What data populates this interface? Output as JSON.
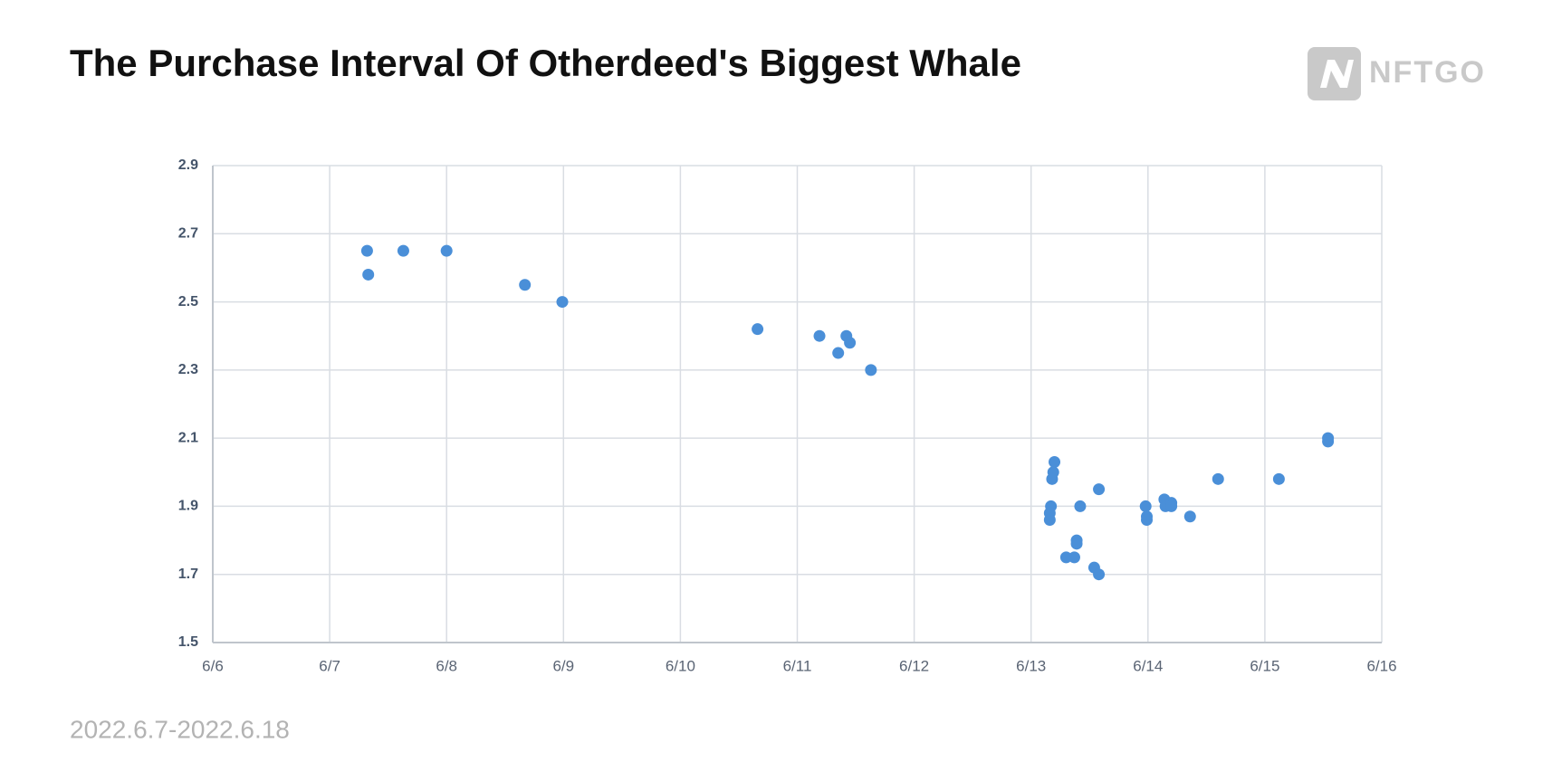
{
  "logo": "NFTGO",
  "chart_data": {
    "type": "scatter",
    "title": "The Purchase Interval Of Otherdeed's Biggest Whale",
    "subtitle": "2022.6.7-2022.6.18",
    "color": "#4a8fd8",
    "grid": true,
    "x": [
      7.32,
      7.33,
      7.63,
      8.0,
      8.67,
      8.99,
      10.66,
      11.19,
      11.42,
      11.45,
      11.35,
      11.63,
      13.2,
      13.19,
      13.18,
      13.17,
      13.16,
      13.16,
      13.42,
      13.58,
      13.39,
      13.39,
      13.3,
      13.37,
      13.54,
      13.58,
      13.98,
      13.99,
      13.99,
      14.14,
      14.15,
      14.2,
      14.2,
      14.36,
      14.6,
      15.12,
      15.54,
      15.54
    ],
    "values": [
      2.65,
      2.58,
      2.65,
      2.65,
      2.55,
      2.5,
      2.42,
      2.4,
      2.4,
      2.38,
      2.35,
      2.3,
      2.03,
      2.0,
      1.98,
      1.9,
      1.88,
      1.86,
      1.9,
      1.95,
      1.8,
      1.79,
      1.75,
      1.75,
      1.72,
      1.7,
      1.9,
      1.87,
      1.86,
      1.92,
      1.9,
      1.91,
      1.9,
      1.87,
      1.98,
      1.98,
      2.1,
      2.09
    ],
    "xlim": [
      6,
      16
    ],
    "xticks": [
      {
        "value": 6,
        "label": "6/6"
      },
      {
        "value": 7,
        "label": "6/7"
      },
      {
        "value": 8,
        "label": "6/8"
      },
      {
        "value": 9,
        "label": "6/9"
      },
      {
        "value": 10,
        "label": "6/10"
      },
      {
        "value": 11,
        "label": "6/11"
      },
      {
        "value": 12,
        "label": "6/12"
      },
      {
        "value": 13,
        "label": "6/13"
      },
      {
        "value": 14,
        "label": "6/14"
      },
      {
        "value": 15,
        "label": "6/15"
      },
      {
        "value": 16,
        "label": "6/16"
      }
    ],
    "ylim": [
      1.5,
      2.9
    ],
    "yticks": [
      1.5,
      1.7,
      1.9,
      2.1,
      2.3,
      2.5,
      2.7,
      2.9
    ]
  }
}
